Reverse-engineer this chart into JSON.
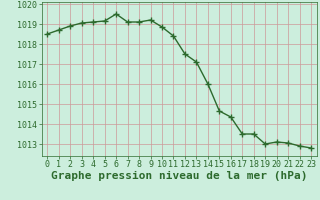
{
  "x": [
    0,
    1,
    2,
    3,
    4,
    5,
    6,
    7,
    8,
    9,
    10,
    11,
    12,
    13,
    14,
    15,
    16,
    17,
    18,
    19,
    20,
    21,
    22,
    23
  ],
  "y": [
    1018.5,
    1018.7,
    1018.9,
    1019.05,
    1019.1,
    1019.15,
    1019.5,
    1019.1,
    1019.1,
    1019.2,
    1018.85,
    1018.4,
    1017.5,
    1017.1,
    1016.0,
    1014.65,
    1014.35,
    1013.5,
    1013.5,
    1013.0,
    1013.1,
    1013.05,
    1012.9,
    1012.8
  ],
  "ylim": [
    1012.4,
    1020.1
  ],
  "yticks": [
    1013,
    1014,
    1015,
    1016,
    1017,
    1018,
    1019,
    1020
  ],
  "xlim": [
    -0.5,
    23.5
  ],
  "xticks": [
    0,
    1,
    2,
    3,
    4,
    5,
    6,
    7,
    8,
    9,
    10,
    11,
    12,
    13,
    14,
    15,
    16,
    17,
    18,
    19,
    20,
    21,
    22,
    23
  ],
  "line_color": "#2d6a2d",
  "marker": "+",
  "marker_size": 4,
  "line_width": 1.0,
  "bg_color": "#cceedd",
  "grid_color_v": "#cc9999",
  "grid_color_h": "#cc9999",
  "xlabel": "Graphe pression niveau de la mer (hPa)",
  "xlabel_color": "#2d6a2d",
  "tick_color": "#2d6a2d",
  "tick_fontsize": 6.0,
  "xlabel_fontsize": 8.0
}
